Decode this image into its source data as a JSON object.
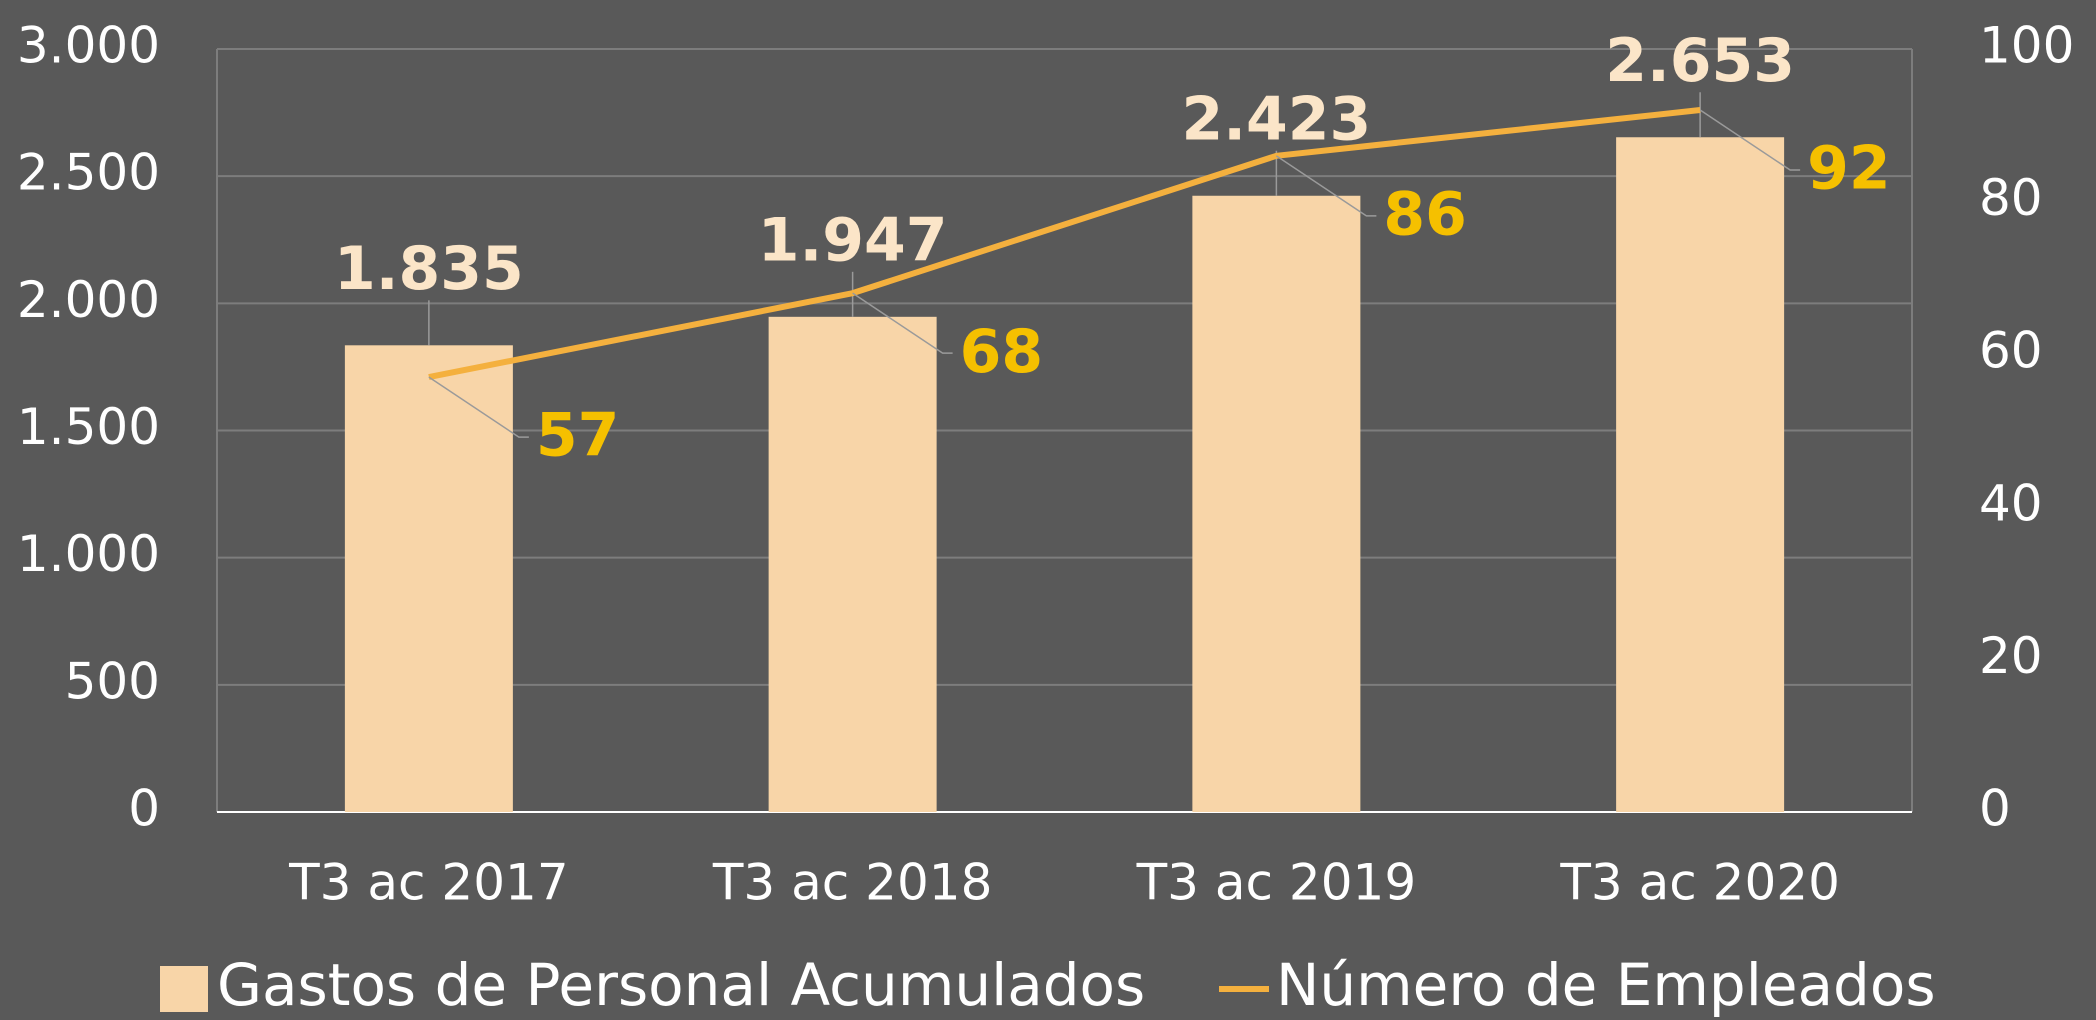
{
  "chart_data": {
    "type": "combo",
    "categories": [
      "T3 ac 2017",
      "T3 ac 2018",
      "T3 ac 2019",
      "T3 ac 2020"
    ],
    "series": [
      {
        "name": "Gastos de Personal Acumulados",
        "type": "bar",
        "color": "#f8d5a8",
        "label_color": "#fbe5c8",
        "values": [
          1835,
          1947,
          2423,
          2653
        ],
        "value_labels": [
          "1.835",
          "1.947",
          "2.423",
          "2.653"
        ]
      },
      {
        "name": "Número de Empleados",
        "type": "line",
        "axis": "y2",
        "color": "#f4b03e",
        "label_color": "#f5c000",
        "values": [
          57,
          68,
          86,
          92
        ]
      }
    ],
    "ylim": [
      0,
      3000
    ],
    "yticks": [
      0,
      500,
      {
        "value": 1000,
        "label": "1.000"
      },
      {
        "value": 1500,
        "label": "1.500"
      },
      {
        "value": 2000,
        "label": "2.000"
      },
      {
        "value": 2500,
        "label": "2.500"
      },
      {
        "value": 3000,
        "label": "3.000"
      }
    ],
    "y2lim": [
      0,
      100
    ],
    "y2ticks": [
      0,
      20,
      40,
      60,
      80,
      100
    ],
    "grid": true,
    "legend": "bottom"
  }
}
